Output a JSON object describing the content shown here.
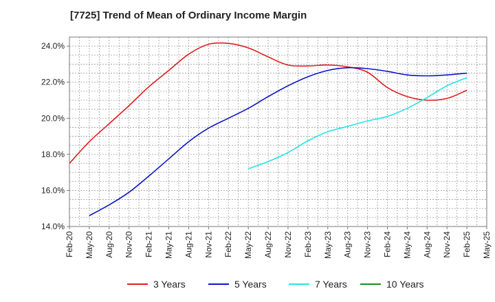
{
  "chart_data": {
    "type": "line",
    "title": "[7725]  Trend of Mean of Ordinary Income Margin",
    "xlabel": "",
    "ylabel": "",
    "x_ticks": [
      "Feb-20",
      "May-20",
      "Aug-20",
      "Nov-20",
      "Feb-21",
      "May-21",
      "Aug-21",
      "Nov-21",
      "Feb-22",
      "May-22",
      "Aug-22",
      "Nov-22",
      "Feb-23",
      "May-23",
      "Aug-23",
      "Nov-23",
      "Feb-24",
      "May-24",
      "Aug-24",
      "Nov-24",
      "Feb-25",
      "May-25"
    ],
    "y_ticks": [
      "14.0%",
      "16.0%",
      "18.0%",
      "20.0%",
      "22.0%",
      "24.0%"
    ],
    "ylim": [
      14.0,
      24.5
    ],
    "grid": true,
    "legend_position": "bottom",
    "series": [
      {
        "name": "3 Years",
        "color": "#e31a1c",
        "x": [
          "Feb-20",
          "May-20",
          "Aug-20",
          "Nov-20",
          "Feb-21",
          "May-21",
          "Aug-21",
          "Nov-21",
          "Feb-22",
          "May-22",
          "Aug-22",
          "Nov-22",
          "Feb-23",
          "May-23",
          "Aug-23",
          "Nov-23",
          "Feb-24",
          "May-24",
          "Aug-24",
          "Nov-24",
          "Feb-25"
        ],
        "values": [
          17.5,
          18.7,
          19.7,
          20.7,
          21.75,
          22.65,
          23.55,
          24.1,
          24.15,
          23.9,
          23.4,
          22.95,
          22.9,
          22.95,
          22.85,
          22.55,
          21.7,
          21.2,
          21.0,
          21.1,
          21.55
        ]
      },
      {
        "name": "5 Years",
        "color": "#0a14c8",
        "x": [
          "May-20",
          "Aug-20",
          "Nov-20",
          "Feb-21",
          "May-21",
          "Aug-21",
          "Nov-21",
          "Feb-22",
          "May-22",
          "Aug-22",
          "Nov-22",
          "Feb-23",
          "May-23",
          "Aug-23",
          "Nov-23",
          "Feb-24",
          "May-24",
          "Aug-24",
          "Nov-24",
          "Feb-25"
        ],
        "values": [
          14.6,
          15.2,
          15.9,
          16.8,
          17.75,
          18.7,
          19.45,
          20.0,
          20.55,
          21.2,
          21.8,
          22.3,
          22.65,
          22.8,
          22.75,
          22.6,
          22.4,
          22.35,
          22.4,
          22.5
        ]
      },
      {
        "name": "7 Years",
        "color": "#22e5e5",
        "x": [
          "May-22",
          "Aug-22",
          "Nov-22",
          "Feb-23",
          "May-23",
          "Aug-23",
          "Nov-23",
          "Feb-24",
          "May-24",
          "Aug-24",
          "Nov-24",
          "Feb-25"
        ],
        "values": [
          17.2,
          17.6,
          18.1,
          18.75,
          19.25,
          19.55,
          19.85,
          20.1,
          20.55,
          21.15,
          21.8,
          22.25
        ]
      },
      {
        "name": "10 Years",
        "color": "#1a8c1a",
        "x": [],
        "values": []
      }
    ]
  }
}
